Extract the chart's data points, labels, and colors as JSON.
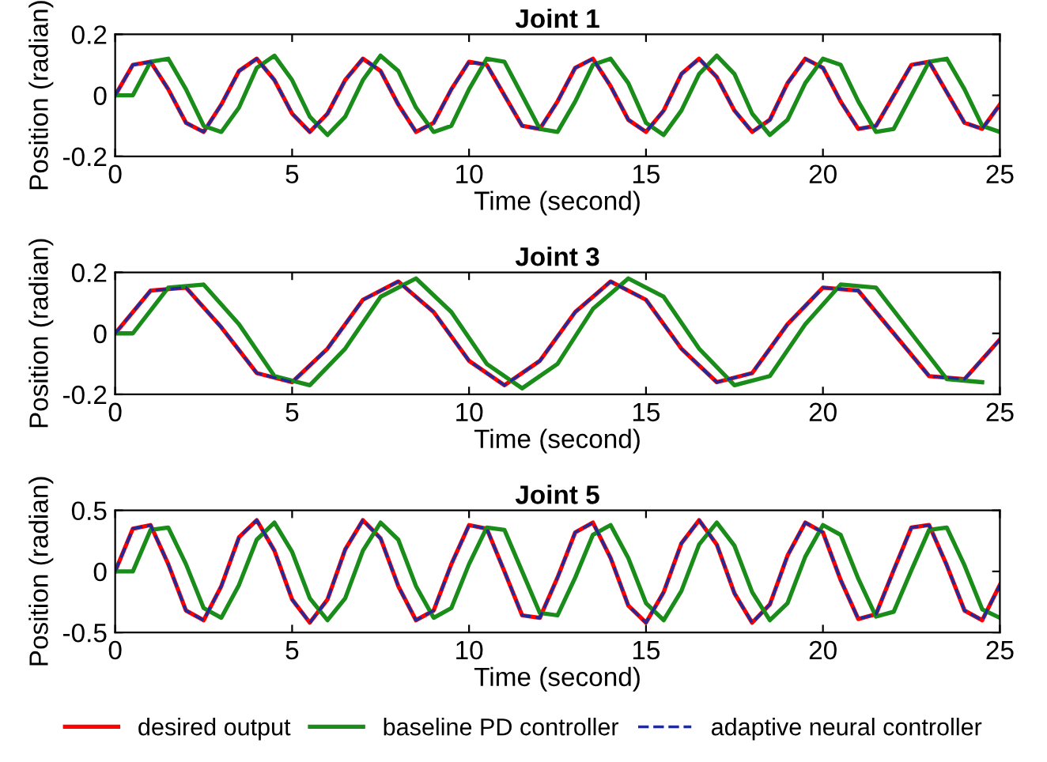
{
  "chart_data": [
    {
      "type": "line",
      "title": "Joint 1",
      "xlabel": "Time (second)",
      "ylabel": "Position (radian)",
      "xlim": [
        0,
        25
      ],
      "xticks": [
        0,
        5,
        10,
        15,
        20,
        25
      ],
      "ylim": [
        -0.2,
        0.2
      ],
      "yticks": [
        -0.2,
        0,
        0.2
      ],
      "x": [
        0,
        0.5,
        1,
        1.5,
        2,
        2.5,
        3,
        3.5,
        4,
        4.5,
        5,
        5.5,
        6,
        6.5,
        7,
        7.5,
        8,
        8.5,
        9,
        9.5,
        10,
        10.5,
        11,
        11.5,
        12,
        12.5,
        13,
        13.5,
        14,
        14.5,
        15,
        15.5,
        16,
        16.5,
        17,
        17.5,
        18,
        18.5,
        19,
        19.5,
        20,
        20.5,
        21,
        21.5,
        22,
        22.5,
        23,
        23.5,
        24,
        24.5,
        25
      ],
      "series": [
        {
          "color": "#ff0000",
          "line_style": "solid",
          "values": [
            0,
            0.1,
            0.11,
            0.02,
            -0.09,
            -0.12,
            -0.03,
            0.08,
            0.12,
            0.05,
            -0.06,
            -0.12,
            -0.06,
            0.05,
            0.12,
            0.08,
            -0.03,
            -0.12,
            -0.09,
            0.02,
            0.11,
            0.1,
            0,
            -0.1,
            -0.11,
            -0.02,
            0.09,
            0.12,
            0.03,
            -0.08,
            -0.12,
            -0.05,
            0.07,
            0.12,
            0.06,
            -0.05,
            -0.12,
            -0.08,
            0.04,
            0.12,
            0.09,
            -0.02,
            -0.11,
            -0.1,
            0,
            0.1,
            0.11,
            0.01,
            -0.09,
            -0.11,
            -0.03
          ]
        },
        {
          "color": "#1a8c1a",
          "line_style": "solid",
          "values": [
            0,
            0,
            0.11,
            0.12,
            0.02,
            -0.1,
            -0.12,
            -0.04,
            0.09,
            0.13,
            0.05,
            -0.07,
            -0.13,
            -0.07,
            0.05,
            0.13,
            0.08,
            -0.04,
            -0.12,
            -0.1,
            0.02,
            0.12,
            0.11,
            0,
            -0.11,
            -0.12,
            -0.02,
            0.1,
            0.12,
            0.04,
            -0.09,
            -0.13,
            -0.05,
            0.07,
            0.13,
            0.07,
            -0.06,
            -0.13,
            -0.08,
            0.04,
            0.12,
            0.1,
            -0.02,
            -0.12,
            -0.11,
            0,
            0.11,
            0.12,
            0.02,
            -0.1,
            -0.12
          ]
        },
        {
          "color": "#1f2a9c",
          "line_style": "dashed",
          "values": [
            0,
            0.1,
            0.11,
            0.02,
            -0.09,
            -0.12,
            -0.03,
            0.08,
            0.12,
            0.05,
            -0.06,
            -0.12,
            -0.06,
            0.05,
            0.12,
            0.08,
            -0.03,
            -0.12,
            -0.09,
            0.02,
            0.11,
            0.1,
            0,
            -0.1,
            -0.11,
            -0.02,
            0.09,
            0.12,
            0.03,
            -0.08,
            -0.12,
            -0.05,
            0.07,
            0.12,
            0.06,
            -0.05,
            -0.12,
            -0.08,
            0.04,
            0.12,
            0.09,
            -0.02,
            -0.11,
            -0.1,
            0,
            0.1,
            0.11,
            0.01,
            -0.09,
            -0.11,
            -0.03
          ]
        }
      ]
    },
    {
      "type": "line",
      "title": "Joint 3",
      "xlabel": "Time (second)",
      "ylabel": "Position (radian)",
      "xlim": [
        0,
        25
      ],
      "xticks": [
        0,
        5,
        10,
        15,
        20,
        25
      ],
      "ylim": [
        -0.2,
        0.2
      ],
      "yticks": [
        -0.2,
        0,
        0.2
      ],
      "x": [
        0,
        1,
        2,
        3,
        4,
        5,
        6,
        7,
        8,
        9,
        10,
        11,
        12,
        13,
        14,
        15,
        16,
        17,
        18,
        19,
        20,
        21,
        22,
        23,
        24,
        25
      ],
      "series": [
        {
          "color": "#ff0000",
          "line_style": "solid",
          "values": [
            0,
            0.14,
            0.15,
            0.02,
            -0.13,
            -0.16,
            -0.05,
            0.11,
            0.17,
            0.07,
            -0.09,
            -0.17,
            -0.09,
            0.07,
            0.17,
            0.11,
            -0.05,
            -0.16,
            -0.13,
            0.03,
            0.15,
            0.14,
            0,
            -0.14,
            -0.15,
            -0.02
          ]
        },
        {
          "color": "#1a8c1a",
          "line_style": "solid",
          "x": [
            0,
            0.5,
            1.5,
            2.5,
            3.5,
            4.5,
            5.5,
            6.5,
            7.5,
            8.5,
            9.5,
            10.5,
            11.5,
            12.5,
            13.5,
            14.5,
            15.5,
            16.5,
            17.5,
            18.5,
            19.5,
            20.5,
            21.5,
            22.5,
            23.5,
            24.5
          ],
          "values": [
            0,
            0,
            0.15,
            0.16,
            0.03,
            -0.14,
            -0.17,
            -0.05,
            0.12,
            0.18,
            0.07,
            -0.1,
            -0.18,
            -0.1,
            0.08,
            0.18,
            0.12,
            -0.05,
            -0.17,
            -0.14,
            0.03,
            0.16,
            0.15,
            0,
            -0.15,
            -0.16
          ]
        },
        {
          "color": "#1f2a9c",
          "line_style": "dashed",
          "values": [
            0,
            0.14,
            0.15,
            0.02,
            -0.13,
            -0.16,
            -0.05,
            0.11,
            0.17,
            0.07,
            -0.09,
            -0.17,
            -0.09,
            0.07,
            0.17,
            0.11,
            -0.05,
            -0.16,
            -0.13,
            0.03,
            0.15,
            0.14,
            0,
            -0.14,
            -0.15,
            -0.02
          ]
        }
      ]
    },
    {
      "type": "line",
      "title": "Joint 5",
      "xlabel": "Time (second)",
      "ylabel": "Position (radian)",
      "xlim": [
        0,
        25
      ],
      "xticks": [
        0,
        5,
        10,
        15,
        20,
        25
      ],
      "ylim": [
        -0.5,
        0.5
      ],
      "yticks": [
        -0.5,
        0,
        0.5
      ],
      "legend": "bottom",
      "x": [
        0,
        0.5,
        1,
        1.5,
        2,
        2.5,
        3,
        3.5,
        4,
        4.5,
        5,
        5.5,
        6,
        6.5,
        7,
        7.5,
        8,
        8.5,
        9,
        9.5,
        10,
        10.5,
        11,
        11.5,
        12,
        12.5,
        13,
        13.5,
        14,
        14.5,
        15,
        15.5,
        16,
        16.5,
        17,
        17.5,
        18,
        18.5,
        19,
        19.5,
        20,
        20.5,
        21,
        21.5,
        22,
        22.5,
        23,
        23.5,
        24,
        24.5,
        25
      ],
      "series": [
        {
          "name": "desired output",
          "color": "#ff0000",
          "line_style": "solid",
          "values": [
            0,
            0.35,
            0.38,
            0.06,
            -0.32,
            -0.4,
            -0.12,
            0.28,
            0.42,
            0.17,
            -0.23,
            -0.42,
            -0.23,
            0.18,
            0.42,
            0.27,
            -0.12,
            -0.4,
            -0.32,
            0.06,
            0.38,
            0.35,
            0,
            -0.36,
            -0.38,
            -0.05,
            0.32,
            0.4,
            0.11,
            -0.28,
            -0.42,
            -0.17,
            0.23,
            0.42,
            0.22,
            -0.18,
            -0.42,
            -0.27,
            0.13,
            0.4,
            0.32,
            -0.07,
            -0.39,
            -0.35,
            0.01,
            0.36,
            0.38,
            0.05,
            -0.32,
            -0.4,
            -0.11
          ]
        },
        {
          "name": "baseline PD controller",
          "color": "#1a8c1a",
          "line_style": "solid",
          "values": [
            0,
            0,
            0.34,
            0.36,
            0.06,
            -0.3,
            -0.38,
            -0.11,
            0.26,
            0.4,
            0.16,
            -0.22,
            -0.4,
            -0.22,
            0.17,
            0.4,
            0.26,
            -0.12,
            -0.38,
            -0.3,
            0.06,
            0.36,
            0.34,
            0,
            -0.34,
            -0.36,
            -0.05,
            0.3,
            0.38,
            0.11,
            -0.26,
            -0.4,
            -0.16,
            0.22,
            0.4,
            0.21,
            -0.17,
            -0.4,
            -0.26,
            0.12,
            0.38,
            0.3,
            -0.06,
            -0.37,
            -0.33,
            0.01,
            0.34,
            0.36,
            0.05,
            -0.31,
            -0.38
          ]
        },
        {
          "name": "adaptive neural controller",
          "color": "#1f2a9c",
          "line_style": "dashed",
          "values": [
            0,
            0.35,
            0.38,
            0.06,
            -0.32,
            -0.4,
            -0.12,
            0.28,
            0.42,
            0.17,
            -0.23,
            -0.42,
            -0.23,
            0.18,
            0.42,
            0.27,
            -0.12,
            -0.4,
            -0.32,
            0.06,
            0.38,
            0.35,
            0,
            -0.36,
            -0.38,
            -0.05,
            0.32,
            0.4,
            0.11,
            -0.28,
            -0.42,
            -0.17,
            0.23,
            0.42,
            0.22,
            -0.18,
            -0.42,
            -0.27,
            0.13,
            0.4,
            0.32,
            -0.07,
            -0.39,
            -0.35,
            0.01,
            0.36,
            0.38,
            0.05,
            -0.32,
            -0.4,
            -0.11
          ]
        }
      ]
    }
  ]
}
